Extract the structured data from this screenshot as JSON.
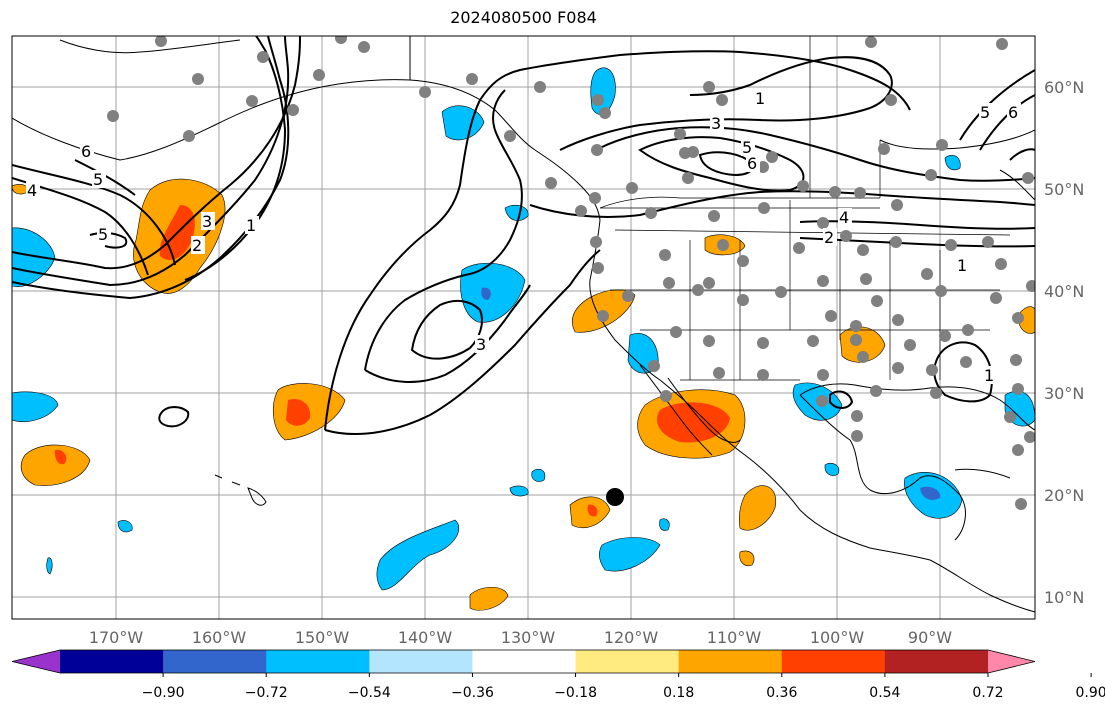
{
  "title": "2024080500 F084",
  "lon_labels": [
    "170°W",
    "160°W",
    "150°W",
    "140°W",
    "130°W",
    "120°W",
    "110°W",
    "100°W",
    "90°W"
  ],
  "lat_labels": [
    "60°N",
    "50°N",
    "40°N",
    "30°N",
    "20°N",
    "10°N"
  ],
  "colorbar": {
    "tick_labels": [
      "−0.90",
      "−0.72",
      "−0.54",
      "−0.36",
      "−0.18",
      "0.18",
      "0.36",
      "0.54",
      "0.72",
      "0.90"
    ],
    "colors": [
      "#9933cc",
      "#000099",
      "#3366cc",
      "#00bfff",
      "#b3e5ff",
      "#ffffff",
      "#ffeb80",
      "#ffa500",
      "#ff4000",
      "#b22222",
      "#ff88aa"
    ]
  },
  "contour_labels": [
    "6",
    "5",
    "4",
    "5",
    "3",
    "2",
    "1",
    "3",
    "1",
    "3",
    "5",
    "6",
    "4",
    "2",
    "1",
    "5",
    "6",
    "1"
  ],
  "colors": {
    "cold": "#00bfff",
    "cold_deep": "#3366cc",
    "warm": "#ffa500",
    "warm_deep": "#ff4000",
    "station": "#808080"
  }
}
